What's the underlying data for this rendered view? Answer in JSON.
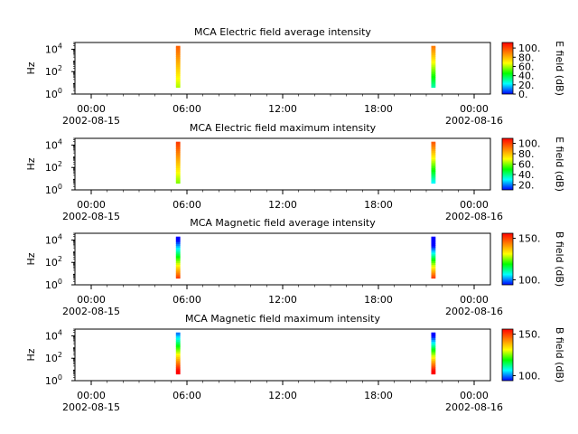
{
  "chart_data": [
    {
      "type": "heatmap",
      "title": "MCA  Electric field average intensity",
      "ylabel": "Hz",
      "yscale": "log",
      "ylim": [
        1,
        40000
      ],
      "yticks": [
        {
          "base": "10",
          "exp": "0"
        },
        {
          "base": "10",
          "exp": "2"
        },
        {
          "base": "10",
          "exp": "4"
        }
      ],
      "xlim": [
        "2002-08-15 00:00",
        "2002-08-16 00:00"
      ],
      "xticks": [
        {
          "time": "00:00",
          "date": "2002-08-15"
        },
        {
          "time": "06:00",
          "date": ""
        },
        {
          "time": "12:00",
          "date": ""
        },
        {
          "time": "18:00",
          "date": ""
        },
        {
          "time": "00:00",
          "date": "2002-08-16"
        }
      ],
      "colorbar": {
        "label": "E field (dB)",
        "ticks": [
          "0.",
          "20.",
          "40.",
          "60.",
          "80.",
          "100."
        ]
      },
      "bursts": [
        {
          "start": "05:50",
          "end": "06:05",
          "freq_low": 4,
          "freq_high": 20000,
          "intensity_low": 60,
          "intensity_high": 95
        },
        {
          "start": "20:35",
          "end": "20:50",
          "freq_low": 4,
          "freq_high": 20000,
          "intensity_low": 30,
          "intensity_high": 90
        }
      ]
    },
    {
      "type": "heatmap",
      "title": "MCA  Electric field maximum intensity",
      "ylabel": "Hz",
      "yscale": "log",
      "ylim": [
        1,
        40000
      ],
      "yticks": [
        {
          "base": "10",
          "exp": "0"
        },
        {
          "base": "10",
          "exp": "2"
        },
        {
          "base": "10",
          "exp": "4"
        }
      ],
      "xlim": [
        "2002-08-15 00:00",
        "2002-08-16 00:00"
      ],
      "xticks": [
        {
          "time": "00:00",
          "date": "2002-08-15"
        },
        {
          "time": "06:00",
          "date": ""
        },
        {
          "time": "12:00",
          "date": ""
        },
        {
          "time": "18:00",
          "date": ""
        },
        {
          "time": "00:00",
          "date": "2002-08-16"
        }
      ],
      "colorbar": {
        "label": "E field (dB)",
        "ticks": [
          "20.",
          "40.",
          "60.",
          "80.",
          "100."
        ]
      },
      "bursts": [
        {
          "start": "05:50",
          "end": "06:05",
          "freq_low": 4,
          "freq_high": 20000,
          "intensity_low": 60,
          "intensity_high": 100
        },
        {
          "start": "20:35",
          "end": "20:50",
          "freq_low": 4,
          "freq_high": 20000,
          "intensity_low": 30,
          "intensity_high": 95
        }
      ]
    },
    {
      "type": "heatmap",
      "title": "MCA  Magnetic field average intensity",
      "ylabel": "Hz",
      "yscale": "log",
      "ylim": [
        1,
        40000
      ],
      "yticks": [
        {
          "base": "10",
          "exp": "0"
        },
        {
          "base": "10",
          "exp": "2"
        },
        {
          "base": "10",
          "exp": "4"
        }
      ],
      "xlim": [
        "2002-08-15 00:00",
        "2002-08-16 00:00"
      ],
      "xticks": [
        {
          "time": "00:00",
          "date": "2002-08-15"
        },
        {
          "time": "06:00",
          "date": ""
        },
        {
          "time": "12:00",
          "date": ""
        },
        {
          "time": "18:00",
          "date": ""
        },
        {
          "time": "00:00",
          "date": "2002-08-16"
        }
      ],
      "colorbar": {
        "label": "B field (dB)",
        "ticks": [
          "100.",
          "150."
        ]
      },
      "bursts": [
        {
          "start": "05:50",
          "end": "06:05",
          "freq_low": 4,
          "freq_high": 20000,
          "intensity_low": 150,
          "intensity_high": 90
        },
        {
          "start": "20:35",
          "end": "20:50",
          "freq_low": 4,
          "freq_high": 20000,
          "intensity_low": 150,
          "intensity_high": 80
        }
      ]
    },
    {
      "type": "heatmap",
      "title": "MCA  Magnetic field maximum intensity",
      "ylabel": "Hz",
      "yscale": "log",
      "ylim": [
        1,
        40000
      ],
      "yticks": [
        {
          "base": "10",
          "exp": "0"
        },
        {
          "base": "10",
          "exp": "2"
        },
        {
          "base": "10",
          "exp": "4"
        }
      ],
      "xlim": [
        "2002-08-15 00:00",
        "2002-08-16 00:00"
      ],
      "xticks": [
        {
          "time": "00:00",
          "date": "2002-08-15"
        },
        {
          "time": "06:00",
          "date": ""
        },
        {
          "time": "12:00",
          "date": ""
        },
        {
          "time": "18:00",
          "date": ""
        },
        {
          "time": "00:00",
          "date": "2002-08-16"
        }
      ],
      "colorbar": {
        "label": "B field (dB)",
        "ticks": [
          "100.",
          "150."
        ]
      },
      "bursts": [
        {
          "start": "05:50",
          "end": "06:05",
          "freq_low": 4,
          "freq_high": 20000,
          "intensity_low": 160,
          "intensity_high": 100
        },
        {
          "start": "20:35",
          "end": "20:50",
          "freq_low": 4,
          "freq_high": 20000,
          "intensity_low": 160,
          "intensity_high": 90
        }
      ]
    }
  ]
}
